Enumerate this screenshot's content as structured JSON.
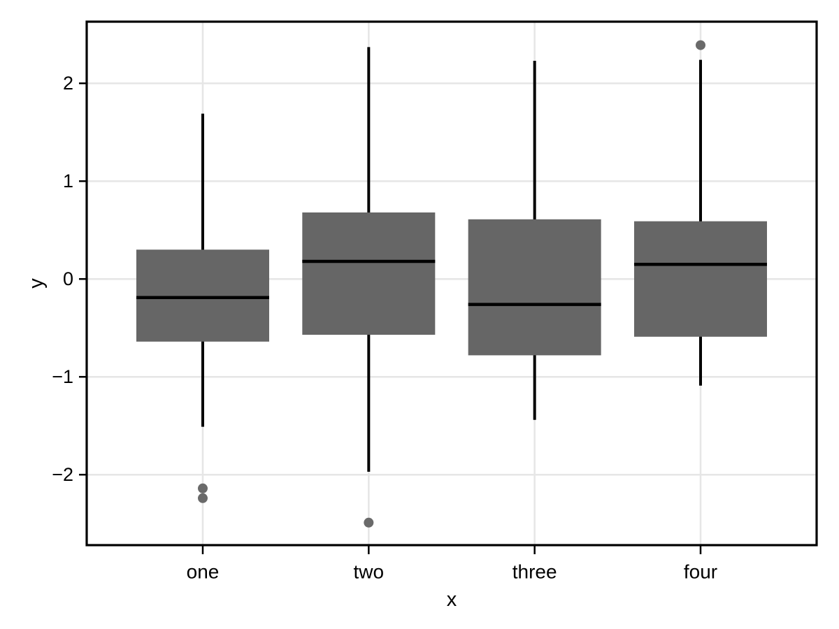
{
  "chart_data": {
    "type": "boxplot",
    "title": "",
    "xlabel": "x",
    "ylabel": "y",
    "categories": [
      "one",
      "two",
      "three",
      "four"
    ],
    "series": [
      {
        "category": "one",
        "whisker_low": -1.51,
        "q1": -0.64,
        "median": -0.19,
        "q3": 0.3,
        "whisker_high": 1.69,
        "outliers": [
          -2.14,
          -2.24
        ]
      },
      {
        "category": "two",
        "whisker_low": -1.97,
        "q1": -0.57,
        "median": 0.18,
        "q3": 0.68,
        "whisker_high": 2.37,
        "outliers": [
          -2.49
        ]
      },
      {
        "category": "three",
        "whisker_low": -1.44,
        "q1": -0.78,
        "median": -0.26,
        "q3": 0.61,
        "whisker_high": 2.23,
        "outliers": []
      },
      {
        "category": "four",
        "whisker_low": -1.09,
        "q1": -0.59,
        "median": 0.15,
        "q3": 0.59,
        "whisker_high": 2.24,
        "outliers": [
          2.39
        ]
      }
    ],
    "y_ticks": [
      2,
      1,
      0,
      -1,
      -2
    ],
    "y_tick_labels": [
      "2",
      "1",
      "0",
      "−1",
      "−2"
    ],
    "ylim": [
      -2.72,
      2.63
    ],
    "grid": true,
    "legend": "none",
    "colors": {
      "box_fill": "#666666",
      "outlier_fill": "#6a6a6a",
      "line": "#000000",
      "gridline": "#e6e6e6",
      "frame": "#000000",
      "background": "#ffffff",
      "text": "#000000"
    }
  }
}
